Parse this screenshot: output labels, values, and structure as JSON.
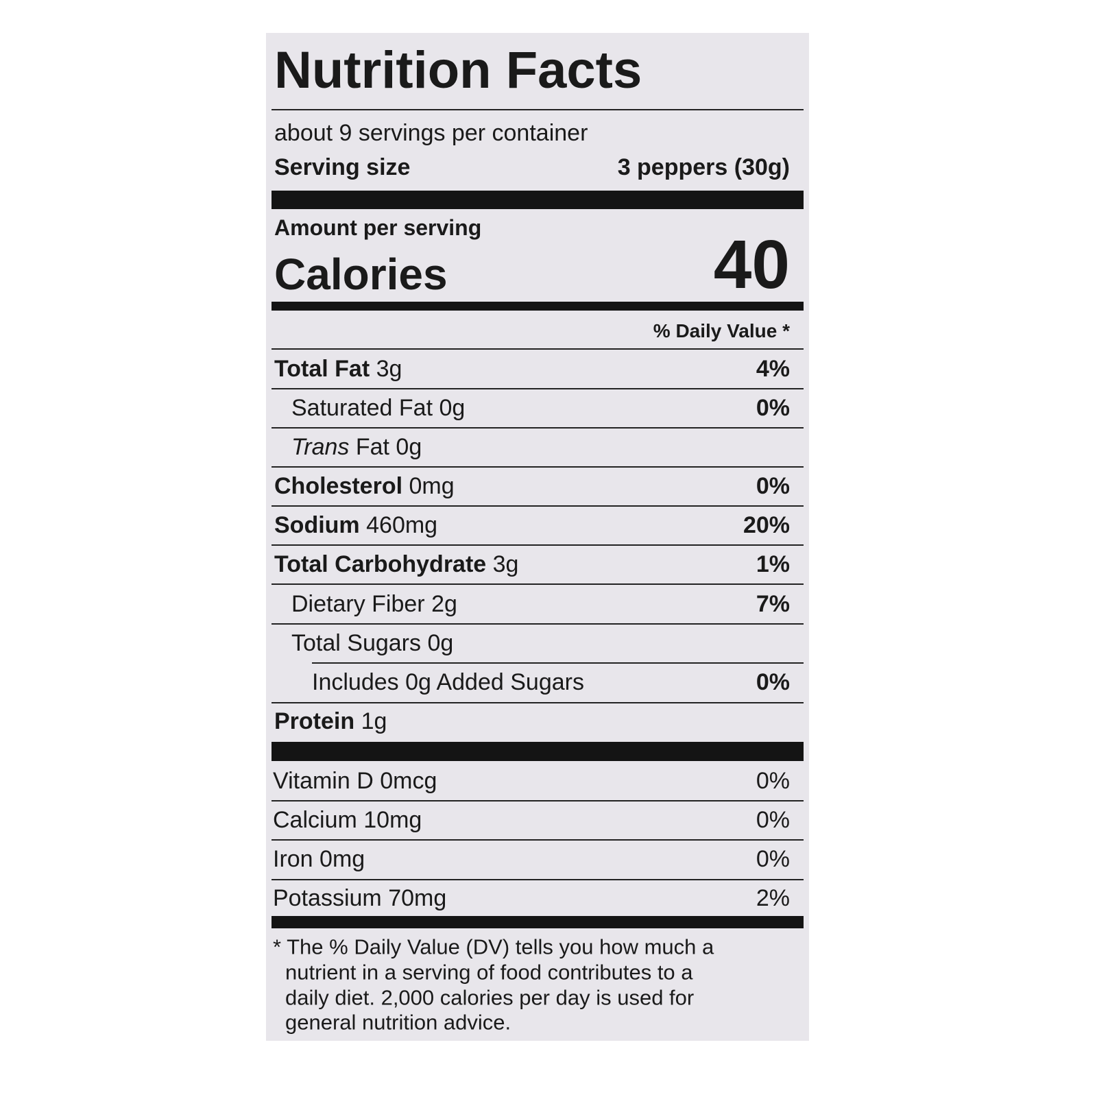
{
  "title": "Nutrition Facts",
  "servings_per_container": "about 9 servings per container",
  "serving_size": {
    "label": "Serving size",
    "value": "3 peppers (30g)"
  },
  "amount_per_serving": "Amount per serving",
  "calories": {
    "label": "Calories",
    "value": 40
  },
  "daily_value_header": "% Daily Value *",
  "nutrients": [
    {
      "name": "Total Fat",
      "amount": "3g",
      "dv": "4%"
    },
    {
      "name": "Saturated Fat",
      "amount": "0g",
      "dv": "0%"
    },
    {
      "prefix": "Trans",
      "name": "Fat",
      "amount": "0g"
    },
    {
      "name": "Cholesterol",
      "amount": "0mg",
      "dv": "0%"
    },
    {
      "name": "Sodium",
      "amount": "460mg",
      "dv": "20%"
    },
    {
      "name": "Total Carbohydrate",
      "amount": "3g",
      "dv": "1%"
    },
    {
      "name": "Dietary Fiber",
      "amount": "2g",
      "dv": "7%"
    },
    {
      "name": "Total Sugars",
      "amount": "0g"
    },
    {
      "name": "Includes 0g Added Sugars",
      "dv": "0%"
    },
    {
      "name": "Protein",
      "amount": "1g"
    }
  ],
  "vitamins": [
    {
      "name": "Vitamin D",
      "amount": "0mcg",
      "dv": "0%"
    },
    {
      "name": "Calcium",
      "amount": "10mg",
      "dv": "0%"
    },
    {
      "name": "Iron",
      "amount": "0mg",
      "dv": "0%"
    },
    {
      "name": "Potassium",
      "amount": "70mg",
      "dv": "2%"
    }
  ],
  "footnote": [
    "* The % Daily Value (DV) tells you how much a",
    "nutrient in a serving of food contributes to a",
    "daily diet. 2,000 calories per day is used for",
    "general nutrition advice."
  ]
}
